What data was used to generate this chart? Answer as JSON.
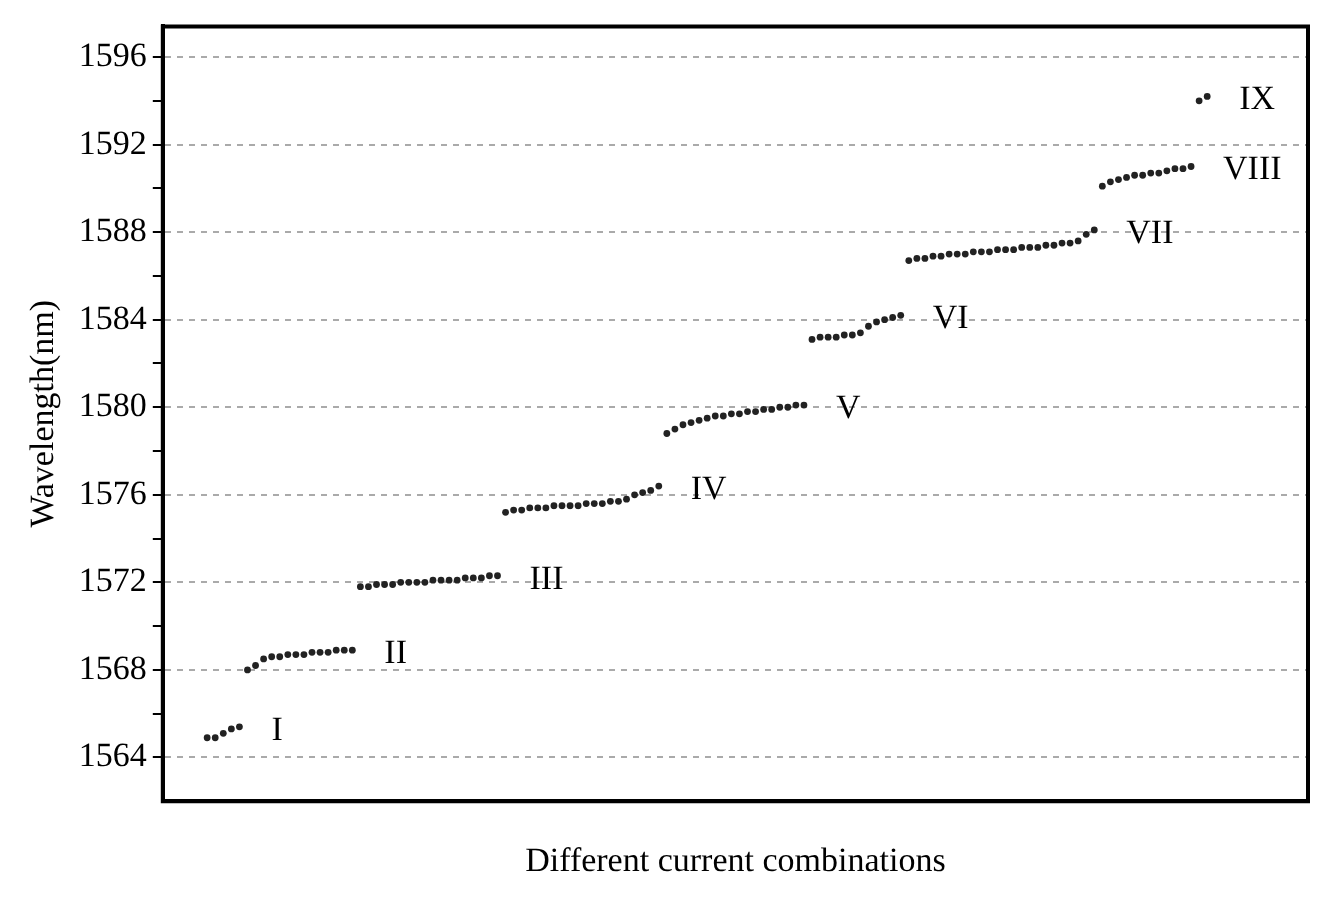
{
  "chart_data": {
    "type": "scatter",
    "xlabel": "Different current combinations",
    "ylabel": "Wavelength(nm)",
    "tick_labels": "y",
    "grid": "y",
    "marker": "circle",
    "categories": [
      null,
      null,
      null,
      null,
      null,
      null,
      null,
      null,
      null,
      null,
      null,
      null,
      null,
      null,
      null,
      null,
      null,
      null,
      null,
      null,
      null,
      null,
      null,
      null,
      null,
      null,
      null,
      null,
      null,
      null,
      null,
      null,
      null,
      null,
      null,
      null,
      null,
      null,
      null,
      null,
      null,
      null,
      null,
      null,
      null,
      null,
      null,
      null,
      null,
      null,
      null,
      null,
      null,
      null,
      null,
      null,
      null,
      null,
      null,
      null,
      null,
      null,
      null,
      null,
      null,
      null,
      null,
      null,
      null,
      null,
      null,
      null,
      null,
      null,
      null,
      null,
      null,
      null,
      null,
      null,
      null,
      null,
      null,
      null,
      null,
      null,
      null,
      null,
      null,
      null,
      null,
      null,
      null,
      null,
      null,
      null,
      null,
      null,
      null,
      null,
      null,
      null,
      null,
      null,
      null,
      null,
      null,
      null,
      null,
      null,
      null,
      null,
      null,
      null,
      null,
      null,
      null,
      null,
      null,
      null,
      null,
      null,
      null,
      null,
      null,
      null,
      null,
      null,
      null,
      null,
      null,
      null,
      null,
      null,
      null,
      null,
      null,
      null,
      null,
      null,
      null,
      null
    ],
    "ylim": [
      1562,
      1597.4
    ],
    "yticks": [
      1564,
      {
        "value": 1566,
        "label": null
      },
      1568,
      {
        "value": 1570,
        "label": null
      },
      1572,
      {
        "value": 1574,
        "label": null
      },
      1576,
      {
        "value": 1578,
        "label": null
      },
      1580,
      {
        "value": 1582,
        "label": null
      },
      1584,
      {
        "value": 1586,
        "label": null
      },
      1588,
      {
        "value": 1590,
        "label": null
      },
      1592,
      {
        "value": 1594,
        "label": null
      },
      1596
    ],
    "annotations": [
      "I",
      "II",
      "III",
      "IV",
      "V",
      "VI",
      "VII",
      "VIII",
      "IX"
    ],
    "series": [
      {
        "color": "#222222",
        "values": [
          null,
          null,
          null,
          null,
          null,
          1564.9,
          1564.9,
          1565.1,
          1565.3,
          1565.4,
          null,
          null,
          null,
          null,
          null,
          null,
          null,
          null,
          null,
          null,
          null,
          null,
          null,
          null,
          null,
          null,
          null,
          null,
          null,
          null,
          null,
          null,
          null,
          null,
          null,
          null,
          null,
          null,
          null,
          null,
          null,
          null,
          null,
          null,
          null,
          null,
          null,
          null,
          null,
          null,
          null,
          null,
          null,
          null,
          null,
          null,
          null,
          null,
          null,
          null,
          null,
          null,
          null,
          null,
          null,
          null,
          null,
          null,
          null,
          null,
          null,
          null,
          null,
          null,
          null,
          null,
          null,
          null,
          null,
          null,
          null,
          null,
          null,
          null,
          null,
          null,
          null,
          null,
          null,
          null,
          null,
          null,
          null,
          null,
          null,
          null,
          null,
          null,
          null,
          null,
          null,
          null,
          null,
          null,
          null,
          null,
          null,
          null,
          null,
          null,
          null,
          null,
          null,
          null,
          null,
          null,
          null,
          null,
          null,
          null,
          null,
          null,
          null,
          null,
          null,
          null,
          null,
          null,
          null,
          null,
          null,
          null,
          null,
          null,
          null,
          null,
          null,
          null,
          null,
          null,
          null,
          null
        ]
      },
      {
        "color": "#222222",
        "values": [
          null,
          null,
          null,
          null,
          null,
          null,
          null,
          null,
          null,
          null,
          1568.0,
          1568.2,
          1568.5,
          1568.6,
          1568.6,
          1568.7,
          1568.7,
          1568.7,
          1568.8,
          1568.8,
          1568.8,
          1568.9,
          1568.9,
          1568.9,
          null,
          null,
          null,
          null,
          null,
          null,
          null,
          null,
          null,
          null,
          null,
          null,
          null,
          null,
          null,
          null,
          null,
          null,
          null,
          null,
          null,
          null,
          null,
          null,
          null,
          null,
          null,
          null,
          null,
          null,
          null,
          null,
          null,
          null,
          null,
          null,
          null,
          null,
          null,
          null,
          null,
          null,
          null,
          null,
          null,
          null,
          null,
          null,
          null,
          null,
          null,
          null,
          null,
          null,
          null,
          null,
          null,
          null,
          null,
          null,
          null,
          null,
          null,
          null,
          null,
          null,
          null,
          null,
          null,
          null,
          null,
          null,
          null,
          null,
          null,
          null,
          null,
          null,
          null,
          null,
          null,
          null,
          null,
          null,
          null,
          null,
          null,
          null,
          null,
          null,
          null,
          null,
          null,
          null,
          null,
          null,
          null,
          null,
          null,
          null,
          null,
          null,
          null,
          null,
          null,
          null,
          null,
          null,
          null,
          null,
          null,
          null,
          null,
          null,
          null,
          null,
          null,
          null
        ]
      },
      {
        "color": "#222222",
        "values": [
          null,
          null,
          null,
          null,
          null,
          null,
          null,
          null,
          null,
          null,
          null,
          null,
          null,
          null,
          null,
          null,
          null,
          null,
          null,
          null,
          null,
          null,
          null,
          null,
          1571.8,
          1571.8,
          1571.9,
          1571.9,
          1571.9,
          1572.0,
          1572.0,
          1572.0,
          1572.0,
          1572.1,
          1572.1,
          1572.1,
          1572.1,
          1572.2,
          1572.2,
          1572.2,
          1572.3,
          1572.3,
          null,
          null,
          null,
          null,
          null,
          null,
          null,
          null,
          null,
          null,
          null,
          null,
          null,
          null,
          null,
          null,
          null,
          null,
          null,
          null,
          null,
          null,
          null,
          null,
          null,
          null,
          null,
          null,
          null,
          null,
          null,
          null,
          null,
          null,
          null,
          null,
          null,
          null,
          null,
          null,
          null,
          null,
          null,
          null,
          null,
          null,
          null,
          null,
          null,
          null,
          null,
          null,
          null,
          null,
          null,
          null,
          null,
          null,
          null,
          null,
          null,
          null,
          null,
          null,
          null,
          null,
          null,
          null,
          null,
          null,
          null,
          null,
          null,
          null,
          null,
          null,
          null,
          null,
          null,
          null,
          null,
          null,
          null,
          null,
          null,
          null,
          null,
          null,
          null,
          null,
          null,
          null,
          null,
          null,
          null,
          null,
          null,
          null,
          null,
          null
        ]
      },
      {
        "color": "#222222",
        "values": [
          null,
          null,
          null,
          null,
          null,
          null,
          null,
          null,
          null,
          null,
          null,
          null,
          null,
          null,
          null,
          null,
          null,
          null,
          null,
          null,
          null,
          null,
          null,
          null,
          null,
          null,
          null,
          null,
          null,
          null,
          null,
          null,
          null,
          null,
          null,
          null,
          null,
          null,
          null,
          null,
          null,
          null,
          1575.2,
          1575.3,
          1575.3,
          1575.4,
          1575.4,
          1575.4,
          1575.5,
          1575.5,
          1575.5,
          1575.5,
          1575.6,
          1575.6,
          1575.6,
          1575.7,
          1575.7,
          1575.8,
          1576.0,
          1576.1,
          1576.2,
          1576.4,
          null,
          null,
          null,
          null,
          null,
          null,
          null,
          null,
          null,
          null,
          null,
          null,
          null,
          null,
          null,
          null,
          null,
          null,
          null,
          null,
          null,
          null,
          null,
          null,
          null,
          null,
          null,
          null,
          null,
          null,
          null,
          null,
          null,
          null,
          null,
          null,
          null,
          null,
          null,
          null,
          null,
          null,
          null,
          null,
          null,
          null,
          null,
          null,
          null,
          null,
          null,
          null,
          null,
          null,
          null,
          null,
          null,
          null,
          null,
          null,
          null,
          null,
          null,
          null,
          null,
          null,
          null,
          null,
          null,
          null,
          null,
          null,
          null,
          null,
          null,
          null,
          null,
          null,
          null,
          null
        ]
      },
      {
        "color": "#222222",
        "values": [
          null,
          null,
          null,
          null,
          null,
          null,
          null,
          null,
          null,
          null,
          null,
          null,
          null,
          null,
          null,
          null,
          null,
          null,
          null,
          null,
          null,
          null,
          null,
          null,
          null,
          null,
          null,
          null,
          null,
          null,
          null,
          null,
          null,
          null,
          null,
          null,
          null,
          null,
          null,
          null,
          null,
          null,
          null,
          null,
          null,
          null,
          null,
          null,
          null,
          null,
          null,
          null,
          null,
          null,
          null,
          null,
          null,
          null,
          null,
          null,
          null,
          null,
          1578.8,
          1579.0,
          1579.2,
          1579.3,
          1579.4,
          1579.5,
          1579.6,
          1579.6,
          1579.7,
          1579.7,
          1579.8,
          1579.8,
          1579.9,
          1579.9,
          1580.0,
          1580.0,
          1580.1,
          1580.1,
          null,
          null,
          null,
          null,
          null,
          null,
          null,
          null,
          null,
          null,
          null,
          null,
          null,
          null,
          null,
          null,
          null,
          null,
          null,
          null,
          null,
          null,
          null,
          null,
          null,
          null,
          null,
          null,
          null,
          null,
          null,
          null,
          null,
          null,
          null,
          null,
          null,
          null,
          null,
          null,
          null,
          null,
          null,
          null,
          null,
          null,
          null,
          null,
          null,
          null,
          null,
          null,
          null,
          null,
          null,
          null,
          null,
          null,
          null,
          null,
          null,
          null
        ]
      },
      {
        "color": "#222222",
        "values": [
          null,
          null,
          null,
          null,
          null,
          null,
          null,
          null,
          null,
          null,
          null,
          null,
          null,
          null,
          null,
          null,
          null,
          null,
          null,
          null,
          null,
          null,
          null,
          null,
          null,
          null,
          null,
          null,
          null,
          null,
          null,
          null,
          null,
          null,
          null,
          null,
          null,
          null,
          null,
          null,
          null,
          null,
          null,
          null,
          null,
          null,
          null,
          null,
          null,
          null,
          null,
          null,
          null,
          null,
          null,
          null,
          null,
          null,
          null,
          null,
          null,
          null,
          null,
          null,
          null,
          null,
          null,
          null,
          null,
          null,
          null,
          null,
          null,
          null,
          null,
          null,
          null,
          null,
          null,
          null,
          1583.1,
          1583.2,
          1583.2,
          1583.2,
          1583.3,
          1583.3,
          1583.4,
          1583.7,
          1583.9,
          1584.0,
          1584.1,
          1584.2,
          null,
          null,
          null,
          null,
          null,
          null,
          null,
          null,
          null,
          null,
          null,
          null,
          null,
          null,
          null,
          null,
          null,
          null,
          null,
          null,
          null,
          null,
          null,
          null,
          null,
          null,
          null,
          null,
          null,
          null,
          null,
          null,
          null,
          null,
          null,
          null,
          null,
          null,
          null,
          null,
          null,
          null,
          null,
          null,
          null,
          null,
          null,
          null,
          null,
          null
        ]
      },
      {
        "color": "#222222",
        "values": [
          null,
          null,
          null,
          null,
          null,
          null,
          null,
          null,
          null,
          null,
          null,
          null,
          null,
          null,
          null,
          null,
          null,
          null,
          null,
          null,
          null,
          null,
          null,
          null,
          null,
          null,
          null,
          null,
          null,
          null,
          null,
          null,
          null,
          null,
          null,
          null,
          null,
          null,
          null,
          null,
          null,
          null,
          null,
          null,
          null,
          null,
          null,
          null,
          null,
          null,
          null,
          null,
          null,
          null,
          null,
          null,
          null,
          null,
          null,
          null,
          null,
          null,
          null,
          null,
          null,
          null,
          null,
          null,
          null,
          null,
          null,
          null,
          null,
          null,
          null,
          null,
          null,
          null,
          null,
          null,
          null,
          null,
          null,
          null,
          null,
          null,
          null,
          null,
          null,
          null,
          null,
          null,
          1586.7,
          1586.8,
          1586.8,
          1586.9,
          1586.9,
          1587.0,
          1587.0,
          1587.0,
          1587.1,
          1587.1,
          1587.1,
          1587.2,
          1587.2,
          1587.2,
          1587.3,
          1587.3,
          1587.3,
          1587.4,
          1587.4,
          1587.5,
          1587.5,
          1587.6,
          1587.9,
          1588.1,
          null,
          null,
          null,
          null,
          null,
          null,
          null,
          null,
          null,
          null,
          null,
          null,
          null,
          null,
          null,
          null,
          null,
          null,
          null,
          null,
          null,
          null,
          null,
          null,
          null,
          null
        ]
      },
      {
        "color": "#222222",
        "values": [
          null,
          null,
          null,
          null,
          null,
          null,
          null,
          null,
          null,
          null,
          null,
          null,
          null,
          null,
          null,
          null,
          null,
          null,
          null,
          null,
          null,
          null,
          null,
          null,
          null,
          null,
          null,
          null,
          null,
          null,
          null,
          null,
          null,
          null,
          null,
          null,
          null,
          null,
          null,
          null,
          null,
          null,
          null,
          null,
          null,
          null,
          null,
          null,
          null,
          null,
          null,
          null,
          null,
          null,
          null,
          null,
          null,
          null,
          null,
          null,
          null,
          null,
          null,
          null,
          null,
          null,
          null,
          null,
          null,
          null,
          null,
          null,
          null,
          null,
          null,
          null,
          null,
          null,
          null,
          null,
          null,
          null,
          null,
          null,
          null,
          null,
          null,
          null,
          null,
          null,
          null,
          null,
          null,
          null,
          null,
          null,
          null,
          null,
          null,
          null,
          null,
          null,
          null,
          null,
          null,
          null,
          null,
          null,
          null,
          null,
          null,
          null,
          null,
          null,
          null,
          null,
          1590.1,
          1590.3,
          1590.4,
          1590.5,
          1590.6,
          1590.6,
          1590.7,
          1590.7,
          1590.8,
          1590.9,
          1590.9,
          1591.0,
          null,
          null,
          null,
          null,
          null,
          null,
          null,
          null,
          null,
          null,
          null,
          null,
          null,
          null
        ]
      },
      {
        "color": "#222222",
        "values": [
          null,
          null,
          null,
          null,
          null,
          null,
          null,
          null,
          null,
          null,
          null,
          null,
          null,
          null,
          null,
          null,
          null,
          null,
          null,
          null,
          null,
          null,
          null,
          null,
          null,
          null,
          null,
          null,
          null,
          null,
          null,
          null,
          null,
          null,
          null,
          null,
          null,
          null,
          null,
          null,
          null,
          null,
          null,
          null,
          null,
          null,
          null,
          null,
          null,
          null,
          null,
          null,
          null,
          null,
          null,
          null,
          null,
          null,
          null,
          null,
          null,
          null,
          null,
          null,
          null,
          null,
          null,
          null,
          null,
          null,
          null,
          null,
          null,
          null,
          null,
          null,
          null,
          null,
          null,
          null,
          null,
          null,
          null,
          null,
          null,
          null,
          null,
          null,
          null,
          null,
          null,
          null,
          null,
          null,
          null,
          null,
          null,
          null,
          null,
          null,
          null,
          null,
          null,
          null,
          null,
          null,
          null,
          null,
          null,
          null,
          null,
          null,
          null,
          null,
          null,
          null,
          null,
          null,
          null,
          null,
          null,
          null,
          null,
          null,
          null,
          null,
          null,
          null,
          1594.0,
          1594.2,
          null,
          null,
          null,
          null,
          null,
          null,
          null,
          null,
          null,
          null,
          null,
          null
        ]
      }
    ]
  }
}
